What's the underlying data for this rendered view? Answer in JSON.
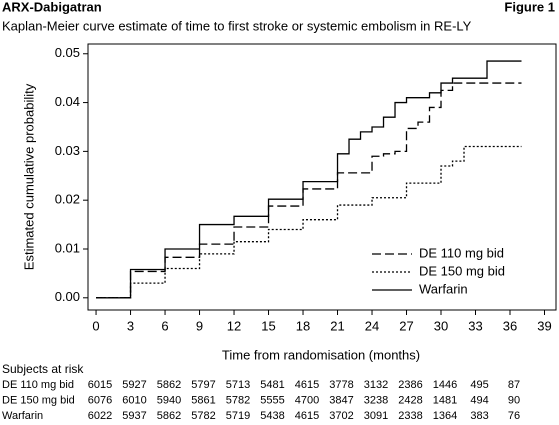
{
  "chart_data": {
    "type": "step",
    "header": "ARX-Dabigatran",
    "figure_label": "Figure 1",
    "title": "Kaplan-Meier curve estimate of time to first stroke or systemic embolism in RE-LY",
    "xlabel": "Time from randomisation (months)",
    "ylabel": "Estimated cumulative probability",
    "xlim": [
      -0.7,
      40
    ],
    "ylim": [
      -0.0025,
      0.052
    ],
    "xticks": [
      0,
      3,
      6,
      9,
      12,
      15,
      18,
      21,
      24,
      27,
      30,
      33,
      36,
      39
    ],
    "yticks": [
      {
        "value": 0,
        "label": "0.00"
      },
      {
        "value": 0.01,
        "label": "0.01"
      },
      {
        "value": 0.02,
        "label": "0.02"
      },
      {
        "value": 0.03,
        "label": "0.03"
      },
      {
        "value": 0.04,
        "label": "0.04"
      },
      {
        "value": 0.05,
        "label": "0.05"
      }
    ],
    "legend": "lower right",
    "series": [
      {
        "name": "DE 110 mg bid",
        "color": "#000",
        "style": "dashed",
        "x": [
          0,
          3,
          6,
          9,
          12,
          15,
          18,
          21,
          24,
          25,
          26,
          27,
          28,
          29,
          30,
          31,
          37
        ],
        "values": [
          0,
          0.0054,
          0.0083,
          0.011,
          0.0145,
          0.0188,
          0.0223,
          0.0256,
          0.029,
          0.0295,
          0.03,
          0.0347,
          0.036,
          0.039,
          0.0425,
          0.044,
          0.044
        ]
      },
      {
        "name": "DE 150 mg bid",
        "color": "#000",
        "style": "dotted",
        "x": [
          0,
          3,
          6,
          9,
          12,
          15,
          18,
          21,
          24,
          27,
          30,
          31,
          32,
          37
        ],
        "values": [
          0,
          0.003,
          0.006,
          0.009,
          0.0115,
          0.014,
          0.016,
          0.019,
          0.0205,
          0.0235,
          0.027,
          0.028,
          0.031,
          0.031
        ]
      },
      {
        "name": "Warfarin",
        "color": "#000",
        "style": "solid",
        "x": [
          0,
          3,
          6,
          9,
          12,
          15,
          18,
          21,
          22,
          23,
          24,
          25,
          26,
          27,
          29,
          30,
          31,
          34,
          37
        ],
        "values": [
          0,
          0.0058,
          0.01,
          0.015,
          0.0167,
          0.0202,
          0.0238,
          0.0295,
          0.0325,
          0.034,
          0.035,
          0.037,
          0.04,
          0.041,
          0.042,
          0.044,
          0.045,
          0.0485,
          0.0485
        ]
      }
    ]
  },
  "risk_table": {
    "title": "Subjects at risk",
    "rows": [
      {
        "label": "DE 110 mg bid",
        "values": [
          "6015",
          "5927",
          "5862",
          "5797",
          "5713",
          "5481",
          "4615",
          "3778",
          "3132",
          "2386",
          "1446",
          "495",
          "87"
        ]
      },
      {
        "label": "DE 150 mg bid",
        "values": [
          "6076",
          "6010",
          "5940",
          "5861",
          "5782",
          "5555",
          "4700",
          "3847",
          "3238",
          "2428",
          "1481",
          "494",
          "90"
        ]
      },
      {
        "label": "Warfarin",
        "values": [
          "6022",
          "5937",
          "5862",
          "5782",
          "5719",
          "5438",
          "4615",
          "3702",
          "3091",
          "2338",
          "1364",
          "383",
          "76"
        ]
      }
    ]
  }
}
